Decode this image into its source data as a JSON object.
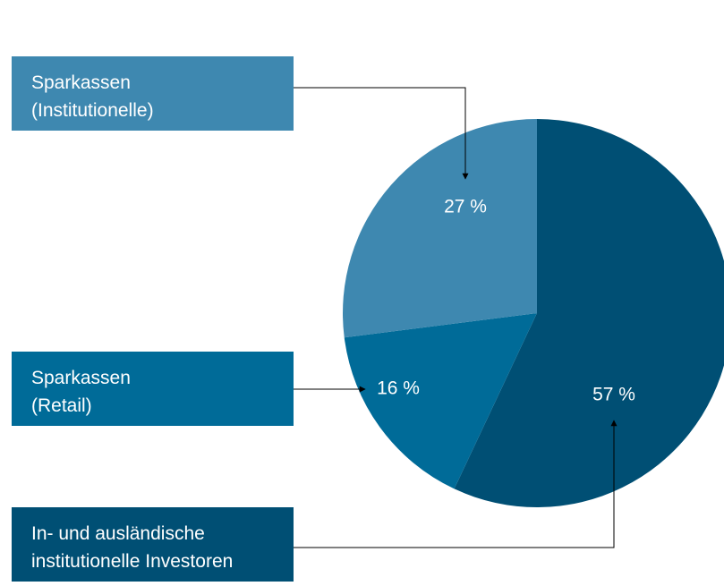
{
  "chart_data": {
    "type": "pie",
    "categories": [
      "In- und ausländische institutionelle Investoren",
      "Sparkassen (Retail)",
      "Sparkassen (Institutionelle)"
    ],
    "values": [
      57,
      16,
      27
    ],
    "value_labels": [
      "57 %",
      "16 %",
      "27 %"
    ],
    "colors": [
      "#004f74",
      "#006b98",
      "#3e88b0"
    ]
  }
}
